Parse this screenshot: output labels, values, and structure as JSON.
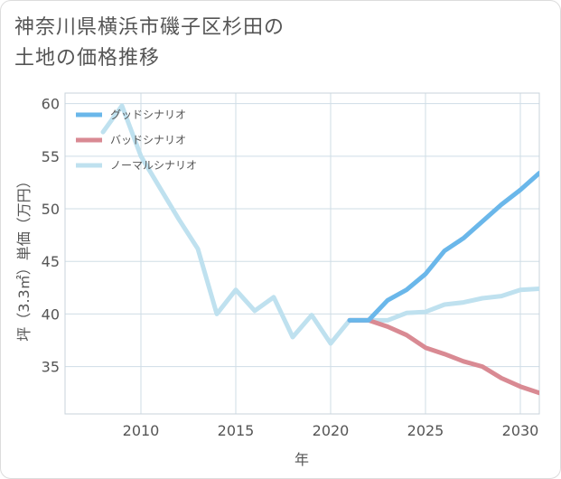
{
  "title_line1": "神奈川県横浜市磯子区杉田の",
  "title_line2": "土地の価格推移",
  "chart_data": {
    "type": "line",
    "xlabel": "年",
    "ylabel": "坪（3.3㎡）単価（万円）",
    "xlim": [
      2006,
      2031
    ],
    "ylim": [
      30.5,
      61
    ],
    "x_ticks": [
      2010,
      2015,
      2020,
      2025,
      2030
    ],
    "y_ticks": [
      35,
      40,
      45,
      50,
      55,
      60
    ],
    "grid": true,
    "legend_position": "top-left",
    "series": [
      {
        "name": "グッドシナリオ",
        "color": "#6ab7ea",
        "x": [
          2021,
          2022,
          2023,
          2024,
          2025,
          2026,
          2027,
          2028,
          2029,
          2030,
          2031
        ],
        "values": [
          39.4,
          39.4,
          41.3,
          42.3,
          43.8,
          46.0,
          47.2,
          48.8,
          50.4,
          51.8,
          53.4
        ]
      },
      {
        "name": "バッドシナリオ",
        "color": "#d98a93",
        "x": [
          2021,
          2022,
          2023,
          2024,
          2025,
          2026,
          2027,
          2028,
          2029,
          2030,
          2031
        ],
        "values": [
          39.4,
          39.4,
          38.8,
          38.0,
          36.8,
          36.2,
          35.5,
          35.0,
          33.9,
          33.1,
          32.5
        ]
      },
      {
        "name": "ノーマルシナリオ",
        "color": "#bfe1ef",
        "x": [
          2008,
          2009,
          2010,
          2011,
          2012,
          2013,
          2014,
          2015,
          2016,
          2017,
          2018,
          2019,
          2020,
          2021,
          2022,
          2023,
          2024,
          2025,
          2026,
          2027,
          2028,
          2029,
          2030,
          2031
        ],
        "values": [
          57.3,
          59.8,
          55.0,
          52.0,
          49.0,
          46.2,
          40.0,
          42.3,
          40.3,
          41.6,
          37.8,
          39.9,
          37.2,
          39.4,
          39.4,
          39.4,
          40.1,
          40.2,
          40.9,
          41.1,
          41.5,
          41.7,
          42.3,
          42.4
        ]
      }
    ]
  }
}
